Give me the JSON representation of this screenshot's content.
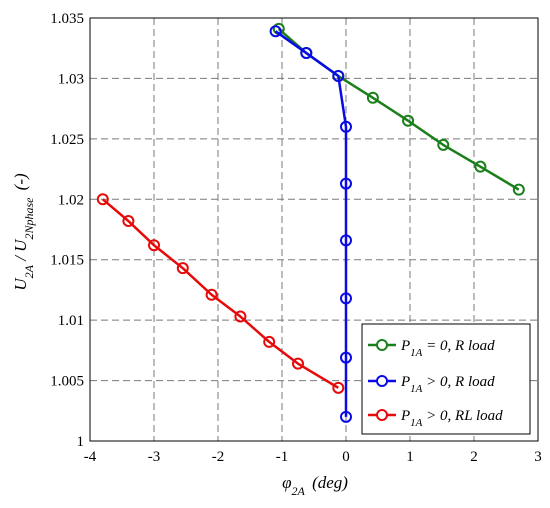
{
  "chart_data": {
    "type": "line",
    "xlim": [
      -4,
      3
    ],
    "ylim": [
      1,
      1.035
    ],
    "x_ticks": [
      "-4",
      "-3",
      "-2",
      "-1",
      "0",
      "1",
      "2",
      "3"
    ],
    "y_ticks": [
      "1",
      "1.005",
      "1.01",
      "1.015",
      "1.02",
      "1.025",
      "1.03",
      "1.035"
    ],
    "grid": true,
    "legend_position": "bottom-right",
    "xlabel": {
      "main": "φ",
      "sub": "2A",
      "rest": " (deg)"
    },
    "ylabel": {
      "u1": "U",
      "s1": "2A",
      "mid": " / U",
      "s2": "2Nphase",
      "rest": " (-)"
    },
    "series": [
      {
        "name": "P1A = 0, R load",
        "label": {
          "p": "P",
          "sub": "1A",
          "rest": " = 0, R load"
        },
        "color": "#1a7f1a",
        "x": [
          -1.05,
          -0.62,
          -0.12,
          0.42,
          0.97,
          1.52,
          2.1,
          2.7
        ],
        "y": [
          1.0341,
          1.0321,
          1.0302,
          1.0284,
          1.0265,
          1.0245,
          1.0227,
          1.0208
        ]
      },
      {
        "name": "P1A > 0, R load",
        "label": {
          "p": "P",
          "sub": "1A",
          "rest": " > 0, R load"
        },
        "color": "#0a0ae6",
        "x": [
          -1.1,
          -0.62,
          -0.12,
          0.0,
          0.0,
          0.0,
          0.0,
          0.0,
          0.0
        ],
        "y": [
          1.0339,
          1.0321,
          1.0302,
          1.026,
          1.0213,
          1.0166,
          1.0118,
          1.0069,
          1.002
        ]
      },
      {
        "name": "P1A > 0, RL load",
        "label": {
          "p": "P",
          "sub": "1A",
          "rest": " > 0, RL load"
        },
        "color": "#e60a0a",
        "x": [
          -3.8,
          -3.4,
          -3.0,
          -2.55,
          -2.1,
          -1.65,
          -1.2,
          -0.75,
          -0.12
        ],
        "y": [
          1.02,
          1.0182,
          1.0162,
          1.0143,
          1.0121,
          1.0103,
          1.0082,
          1.0064,
          1.0044
        ]
      }
    ]
  }
}
